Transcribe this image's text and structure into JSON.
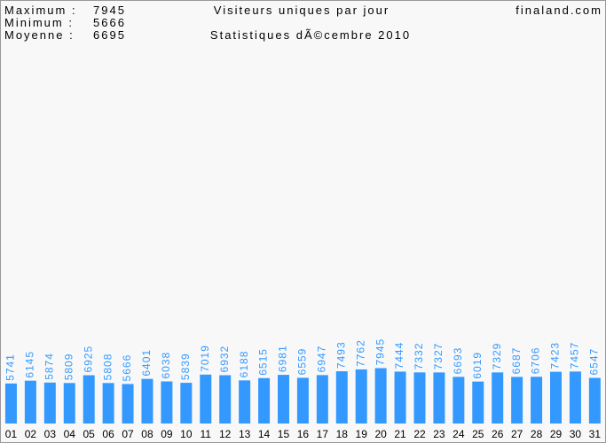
{
  "chart_data": {
    "type": "bar",
    "title": "Visiteurs uniques par jour",
    "subtitle": "Statistiques dÃ©cembre 2010",
    "site": "finaland.com",
    "stats": [
      {
        "label": "Maximum :",
        "value": 7945
      },
      {
        "label": "Minimum :",
        "value": 5666
      },
      {
        "label": "Moyenne :",
        "value": 6695
      }
    ],
    "categories": [
      "01",
      "02",
      "03",
      "04",
      "05",
      "06",
      "07",
      "08",
      "09",
      "10",
      "11",
      "12",
      "13",
      "14",
      "15",
      "16",
      "17",
      "18",
      "19",
      "20",
      "21",
      "22",
      "23",
      "24",
      "25",
      "26",
      "27",
      "28",
      "29",
      "30",
      "31"
    ],
    "values": [
      5741,
      6145,
      5874,
      5809,
      6925,
      5808,
      5666,
      6401,
      6038,
      5839,
      7019,
      6932,
      6188,
      6515,
      6981,
      6559,
      6947,
      7493,
      7762,
      7945,
      7444,
      7332,
      7327,
      6693,
      6019,
      7329,
      6687,
      6706,
      7423,
      7457,
      6547
    ],
    "color": "#3399ff",
    "ylim": [
      0,
      60000
    ]
  }
}
